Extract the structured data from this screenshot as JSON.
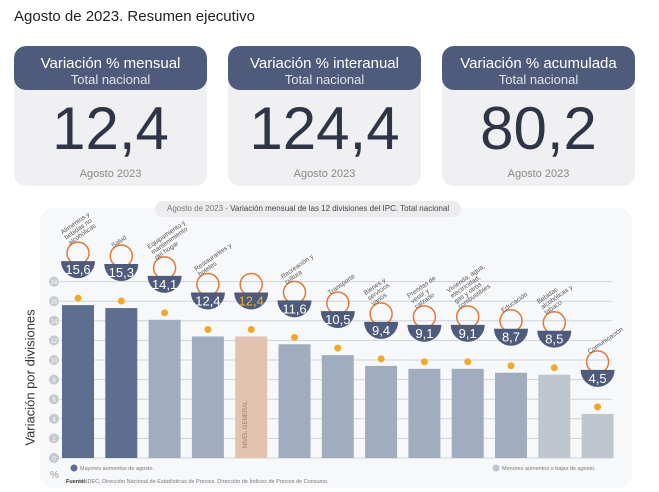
{
  "title": "Agosto de 2023. Resumen ejecutivo",
  "cards": [
    {
      "title": "Variación % mensual",
      "subtitle": "Total nacional",
      "value": "12,4",
      "footer": "Agosto 2023"
    },
    {
      "title": "Variación % interanual",
      "subtitle": "Total nacional",
      "value": "124,4",
      "footer": "Agosto 2023"
    },
    {
      "title": "Variación % acumulada",
      "subtitle": "Total nacional",
      "value": "80,2",
      "footer": "Agosto 2023"
    }
  ],
  "chart_data": {
    "type": "bar",
    "title_prefix": "Agosto de 2023 - ",
    "title": "Variación mensual de las 12 divisiones del IPC. Total nacional",
    "ylabel": "Variación por divisiones",
    "yunit": "%",
    "ylim": [
      0,
      18
    ],
    "yticks": [
      0,
      2,
      4,
      6,
      8,
      10,
      12,
      14,
      16,
      18
    ],
    "categories": [
      "Alimentos y bebidas no alcohólicas",
      "Salud",
      "Equipamiento y mantenimiento del hogar",
      "Restaurantes y hoteles",
      "NIVEL GENERAL",
      "Recreación y cultura",
      "Transporte",
      "Bienes y servicios varios",
      "Prendas de vestir y calzado",
      "Vivienda, agua, electricidad, gas y otros combustibles",
      "Educación",
      "Bebidas alcohólicas y tabaco",
      "Comunicación"
    ],
    "values": [
      15.6,
      15.3,
      14.1,
      12.4,
      12.4,
      11.6,
      10.5,
      9.4,
      9.1,
      9.1,
      8.7,
      8.5,
      4.5
    ],
    "value_labels": [
      "15,6",
      "15,3",
      "14,1",
      "12,4",
      "12,4",
      "11,6",
      "10,5",
      "9,4",
      "9,1",
      "9,1",
      "8,7",
      "8,5",
      "4,5"
    ],
    "groups": [
      "high",
      "high",
      "mid",
      "mid",
      "general",
      "mid",
      "mid",
      "mid",
      "mid",
      "mid",
      "mid",
      "low",
      "low"
    ],
    "legend": {
      "high": "Mayores aumentos de agosto.",
      "low": "Menores aumentos o bajas de agosto."
    },
    "source_label": "Fuente:",
    "source": "INDEC, Dirección Nacional de Estadísticas de Precios. Dirección de Índices de Precios de Consumo."
  },
  "colors": {
    "high": "#5d6e8e",
    "mid": "#a0adbe",
    "general": "#e2c3af",
    "low": "#bfc6ce",
    "badge": "#4f5b7a",
    "dot": "#f0a92a",
    "accent": "#f0b030"
  }
}
